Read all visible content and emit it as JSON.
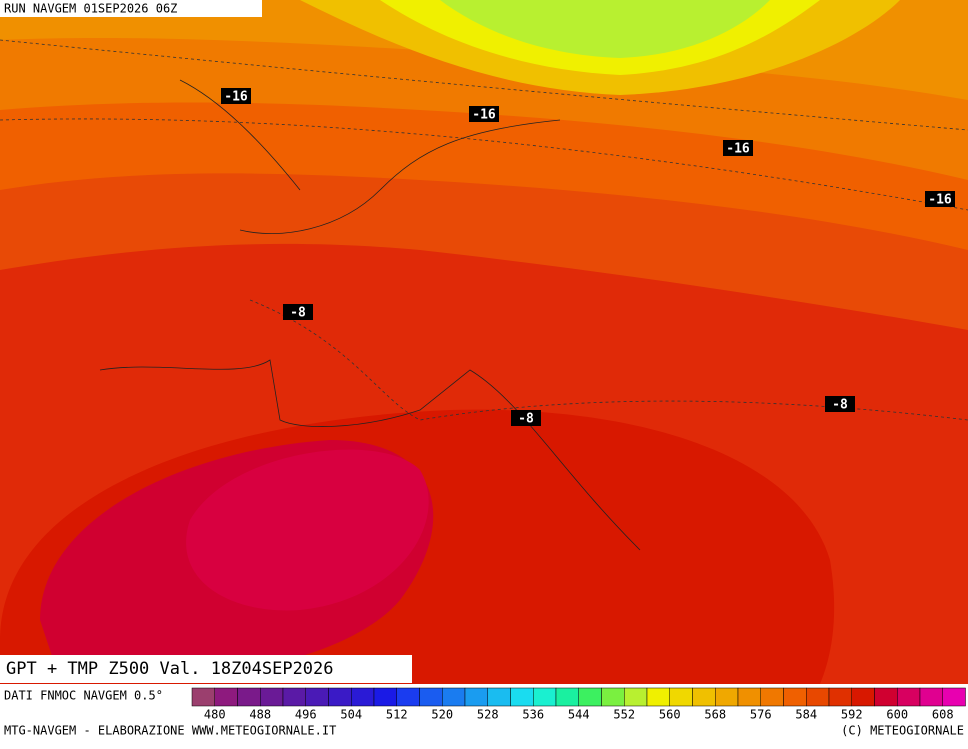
{
  "header": {
    "run": "RUN NAVGEM 01SEP2026 06Z"
  },
  "map": {
    "title": "GPT + TMP Z500 Val. 18Z04SEP2026",
    "isotherm_labels": [
      "-16",
      "-16",
      "-16",
      "-16",
      "-8",
      "-8",
      "-8"
    ]
  },
  "legend": {
    "source": "DATI FNMOC NAVGEM 0.5°",
    "ticks": [
      480,
      488,
      496,
      504,
      512,
      520,
      528,
      536,
      544,
      552,
      560,
      568,
      576,
      584,
      592,
      600,
      608
    ],
    "colors": [
      "#9b3f6e",
      "#8e1a7e",
      "#7a1a8a",
      "#6a1a96",
      "#5a1aa6",
      "#4a1ab6",
      "#3a1ac6",
      "#2a1ad6",
      "#1a1ae6",
      "#1a3cf0",
      "#1a5cf0",
      "#1a7cf0",
      "#1a9cf0",
      "#1abcf0",
      "#1adcf0",
      "#1af0d0",
      "#1af0a0",
      "#3cf060",
      "#7af040",
      "#b8f030",
      "#f0f000",
      "#f0d800",
      "#f0c000",
      "#f0a800",
      "#f09000",
      "#f07800",
      "#f06000",
      "#e84800",
      "#e03000",
      "#d81800",
      "#d00030",
      "#d80060",
      "#e00090",
      "#e800b0"
    ]
  },
  "footer": {
    "left": "MTG-NAVGEM - ELABORAZIONE WWW.METEOGIORNALE.IT",
    "right": "(C) METEOGIORNALE"
  }
}
